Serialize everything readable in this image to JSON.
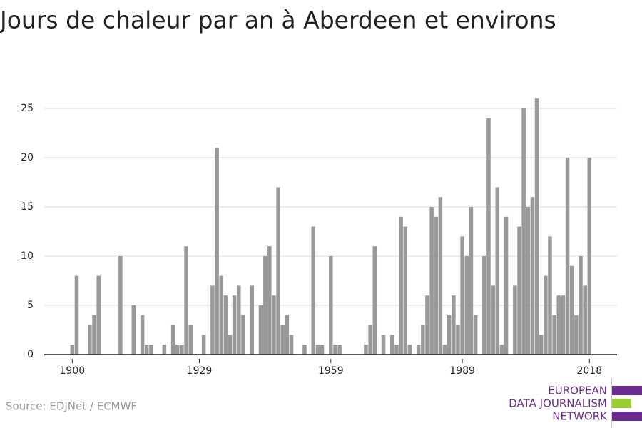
{
  "chart_data": {
    "type": "bar",
    "title": "Jours de chaleur par an à Aberdeen et environs",
    "source": "Source: EDJNet / ECMWF",
    "logo": [
      "EUROPEAN",
      "DATA JOURNALISM",
      "NETWORK"
    ],
    "color": "#999999",
    "grid": true,
    "x": [
      1900,
      1901,
      1902,
      1903,
      1904,
      1905,
      1906,
      1907,
      1908,
      1909,
      1910,
      1911,
      1912,
      1913,
      1914,
      1915,
      1916,
      1917,
      1918,
      1919,
      1920,
      1921,
      1922,
      1923,
      1924,
      1925,
      1926,
      1927,
      1928,
      1929,
      1930,
      1931,
      1932,
      1933,
      1934,
      1935,
      1936,
      1937,
      1938,
      1939,
      1940,
      1941,
      1942,
      1943,
      1944,
      1945,
      1946,
      1947,
      1948,
      1949,
      1950,
      1951,
      1952,
      1953,
      1954,
      1955,
      1956,
      1957,
      1958,
      1959,
      1960,
      1961,
      1962,
      1963,
      1964,
      1965,
      1966,
      1967,
      1968,
      1969,
      1970,
      1971,
      1972,
      1973,
      1974,
      1975,
      1976,
      1977,
      1978,
      1979,
      1980,
      1981,
      1982,
      1983,
      1984,
      1985,
      1986,
      1987,
      1988,
      1989,
      1990,
      1991,
      1992,
      1993,
      1994,
      1995,
      1996,
      1997,
      1998,
      1999,
      2000,
      2001,
      2002,
      2003,
      2004,
      2005,
      2006,
      2007,
      2008,
      2009,
      2010,
      2011,
      2012,
      2013,
      2014,
      2015,
      2016,
      2017,
      2018
    ],
    "values": [
      1,
      8,
      0,
      0,
      3,
      4,
      8,
      0,
      0,
      0,
      0,
      10,
      0,
      0,
      5,
      0,
      4,
      1,
      1,
      0,
      0,
      1,
      0,
      3,
      1,
      1,
      11,
      3,
      0,
      0,
      2,
      0,
      7,
      21,
      8,
      6,
      2,
      6,
      7,
      4,
      0,
      7,
      0,
      5,
      10,
      11,
      6,
      17,
      3,
      4,
      2,
      0,
      0,
      1,
      0,
      13,
      1,
      1,
      0,
      10,
      1,
      1,
      0,
      0,
      0,
      0,
      0,
      1,
      3,
      11,
      0,
      2,
      0,
      2,
      1,
      14,
      13,
      1,
      0,
      1,
      3,
      6,
      15,
      14,
      16,
      1,
      4,
      6,
      3,
      12,
      10,
      15,
      4,
      0,
      10,
      24,
      7,
      17,
      1,
      14,
      0,
      7,
      13,
      25,
      15,
      16,
      26,
      2,
      8,
      12,
      4,
      6,
      6,
      20,
      9,
      4,
      10,
      7,
      20
    ],
    "xlim": [
      1893.6,
      2024.3
    ],
    "xticks": [
      1900,
      1929,
      1959,
      1989,
      2018
    ],
    "ylim": [
      0,
      27
    ],
    "yticks": [
      0,
      5,
      10,
      15,
      20,
      25
    ]
  }
}
